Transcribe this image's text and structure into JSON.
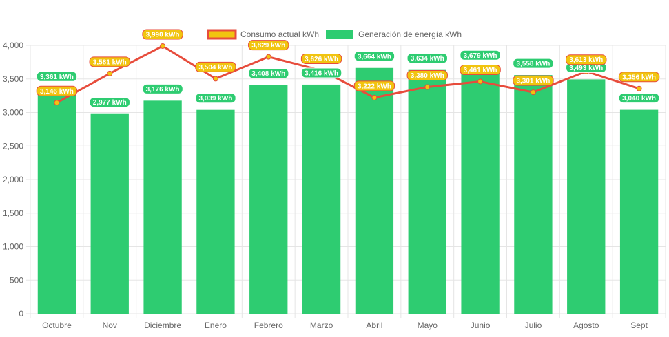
{
  "chart_data": {
    "type": "bar",
    "categories": [
      "Octubre",
      "Nov",
      "Diciembre",
      "Enero",
      "Febrero",
      "Marzo",
      "Abril",
      "Mayo",
      "Junio",
      "Julio",
      "Agosto",
      "Sept"
    ],
    "ylim": [
      0,
      4000
    ],
    "yticks": [
      0,
      500,
      1000,
      1500,
      2000,
      2500,
      3000,
      3500,
      4000
    ],
    "ytick_labels": [
      "0",
      "500",
      "1,000",
      "1,500",
      "2,000",
      "2,500",
      "3,000",
      "3,500",
      "4,000"
    ],
    "legend_position": "top-center",
    "grid": true,
    "series": [
      {
        "name": "Consumo actual kWh",
        "type": "line",
        "color": "#e74c3c",
        "point_color": "#f1c40f",
        "values": [
          3146,
          3581,
          3990,
          3504,
          3829,
          3626,
          3222,
          3380,
          3461,
          3301,
          3613,
          3356
        ],
        "labels": [
          "3,146 kWh",
          "3,581 kWh",
          "3,990 kWh",
          "3,504 kWh",
          "3,829 kWh",
          "3,626 kWh",
          "3,222 kWh",
          "3,380 kWh",
          "3,461 kWh",
          "3,301 kWh",
          "3,613 kWh",
          "3,356 kWh"
        ]
      },
      {
        "name": "Generación de energía kWh",
        "type": "bar",
        "color": "#2ecc71",
        "values": [
          3361,
          2977,
          3176,
          3039,
          3408,
          3416,
          3664,
          3634,
          3679,
          3558,
          3493,
          3040
        ],
        "labels": [
          "3,361 kWh",
          "2,977 kWh",
          "3,176 kWh",
          "3,039 kWh",
          "3,408 kWh",
          "3,416 kWh",
          "3,664 kWh",
          "3,634 kWh",
          "3,679 kWh",
          "3,558 kWh",
          "3,493 kWh",
          "3,040 kWh"
        ]
      }
    ]
  }
}
